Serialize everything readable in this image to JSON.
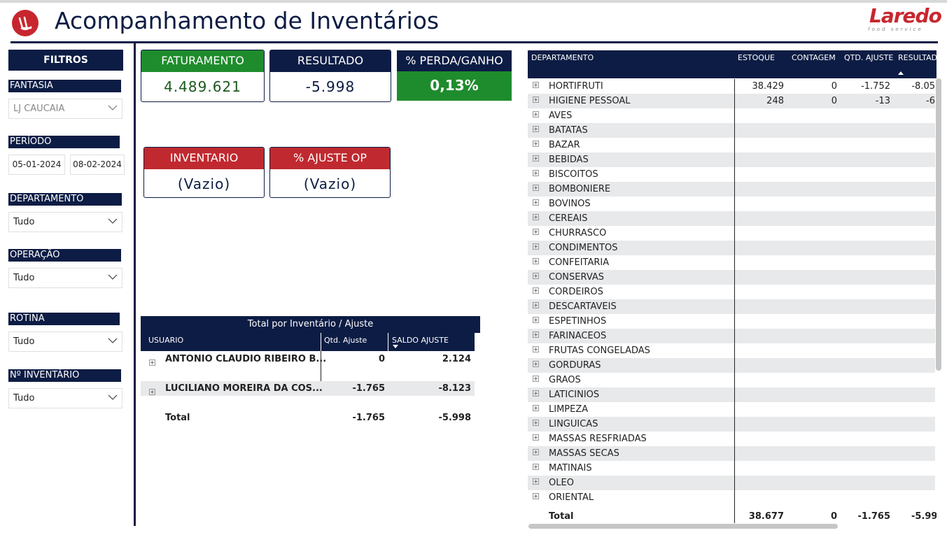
{
  "header": {
    "title": "Acompanhamento de Inventários",
    "brand_name": "Laredo",
    "brand_tagline": "food service"
  },
  "filters": {
    "heading": "FILTROS",
    "fantasia": {
      "label": "FANTASIA",
      "value": "LJ CAUCAIA"
    },
    "periodo": {
      "label": "PERÍODO",
      "start": "05-01-2024",
      "end": "08-02-2024"
    },
    "departamento": {
      "label": "DEPARTAMENTO",
      "value": "Tudo"
    },
    "operacao": {
      "label": "OPERAÇÃO",
      "value": "Tudo"
    },
    "rotina": {
      "label": "ROTINA",
      "value": "Tudo"
    },
    "inventario": {
      "label": "Nº INVENTÁRIO",
      "value": "Tudo"
    }
  },
  "cards": {
    "faturamento": {
      "label": "FATURAMENTO",
      "value": "4.489.621"
    },
    "resultado": {
      "label": "RESULTADO",
      "value": "-5.998"
    },
    "perda_ganho": {
      "label": "% PERDA/GANHO",
      "value": "0,13%"
    },
    "inventario": {
      "label": "INVENTARIO",
      "value": "(Vazio)"
    },
    "ajuste_op": {
      "label": "% AJUSTE OP",
      "value": "(Vazio)"
    }
  },
  "user_table": {
    "title": "Total por Inventário / Ajuste",
    "columns": [
      "USUARIO",
      "Qtd. Ajuste",
      "SALDO AJUSTE"
    ],
    "rows": [
      {
        "usuario": "ANTONIO CLAUDIO RIBEIRO B...",
        "qtd": "0",
        "saldo": "2.124"
      },
      {
        "usuario": "LUCILIANO MOREIRA DA COS...",
        "qtd": "-1.765",
        "saldo": "-8.123"
      }
    ],
    "total": {
      "label": "Total",
      "qtd": "-1.765",
      "saldo": "-5.998"
    }
  },
  "dept_table": {
    "columns": [
      "DEPARTAMENTO",
      "ESTOQUE",
      "CONTAGEM",
      "QTD. AJUSTE",
      "RESULTADO"
    ],
    "rows": [
      {
        "name": "HORTIFRUTI",
        "estoque": "38.429",
        "contagem": "0",
        "ajuste": "-1.752",
        "resultado": "-8.05"
      },
      {
        "name": "HIGIENE PESSOAL",
        "estoque": "248",
        "contagem": "0",
        "ajuste": "-13",
        "resultado": "-6"
      },
      {
        "name": "AVES"
      },
      {
        "name": "BATATAS"
      },
      {
        "name": "BAZAR"
      },
      {
        "name": "BEBIDAS"
      },
      {
        "name": "BISCOITOS"
      },
      {
        "name": "BOMBONIERE"
      },
      {
        "name": "BOVINOS"
      },
      {
        "name": "CEREAIS"
      },
      {
        "name": "CHURRASCO"
      },
      {
        "name": "CONDIMENTOS"
      },
      {
        "name": "CONFEITARIA"
      },
      {
        "name": "CONSERVAS"
      },
      {
        "name": "CORDEIROS"
      },
      {
        "name": "DESCARTAVEIS"
      },
      {
        "name": "ESPETINHOS"
      },
      {
        "name": "FARINACEOS"
      },
      {
        "name": "FRUTAS CONGELADAS"
      },
      {
        "name": "GORDURAS"
      },
      {
        "name": "GRAOS"
      },
      {
        "name": "LATICINIOS"
      },
      {
        "name": "LIMPEZA"
      },
      {
        "name": "LINGUICAS"
      },
      {
        "name": "MASSAS RESFRIADAS"
      },
      {
        "name": "MASSAS SECAS"
      },
      {
        "name": "MATINAIS"
      },
      {
        "name": "OLEO"
      },
      {
        "name": "ORIENTAL"
      }
    ],
    "total": {
      "label": "Total",
      "estoque": "38.677",
      "contagem": "0",
      "ajuste": "-1.765",
      "resultado": "-5.99"
    }
  },
  "colors": {
    "navy": "#0c1c44",
    "green": "#1e8c2d",
    "red": "#c0292f",
    "row_alt": "#e8e9eb"
  }
}
